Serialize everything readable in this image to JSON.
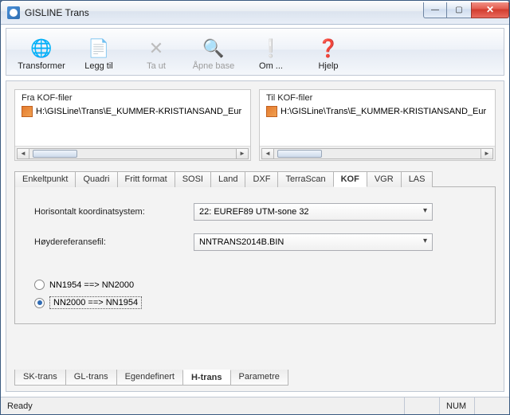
{
  "window": {
    "title": "GISLINE Trans"
  },
  "toolbar": {
    "items": [
      {
        "label": "Transformer",
        "icon": "🌐",
        "enabled": true
      },
      {
        "label": "Legg til",
        "icon": "📄",
        "enabled": true
      },
      {
        "label": "Ta ut",
        "icon": "✕",
        "enabled": false
      },
      {
        "label": "Åpne base",
        "icon": "🔍",
        "enabled": false
      },
      {
        "label": "Om ...",
        "icon": "❕",
        "enabled": true
      },
      {
        "label": "Hjelp",
        "icon": "❓",
        "enabled": true
      }
    ]
  },
  "file_groups": {
    "from": {
      "label": "Fra KOF-filer",
      "path": "H:\\GISLine\\Trans\\E_KUMMER-KRISTIANSAND_Eur"
    },
    "to": {
      "label": "Til KOF-filer",
      "path": "H:\\GISLine\\Trans\\E_KUMMER-KRISTIANSAND_Eur"
    }
  },
  "top_tabs": [
    "Enkeltpunkt",
    "Quadri",
    "Fritt format",
    "SOSI",
    "Land",
    "DXF",
    "TerraScan",
    "KOF",
    "VGR",
    "LAS"
  ],
  "top_active_index": 7,
  "form": {
    "coord_label": "Horisontalt koordinatsystem:",
    "coord_value": "22: EUREF89 UTM-sone 32",
    "href_label": "Høydereferansefil:",
    "href_value": "NNTRANS2014B.BIN",
    "radio1": "NN1954 ==> NN2000",
    "radio2": "NN2000 ==> NN1954",
    "radio_selected": 2
  },
  "bottom_tabs": [
    "SK-trans",
    "GL-trans",
    "Egendefinert",
    "H-trans",
    "Parametre"
  ],
  "bottom_active_index": 3,
  "status": {
    "left": "Ready",
    "right": "NUM"
  },
  "colors": {
    "accent": "#2f6bb3",
    "window_border": "#3a5a80",
    "close_red": "#d13b2d"
  }
}
